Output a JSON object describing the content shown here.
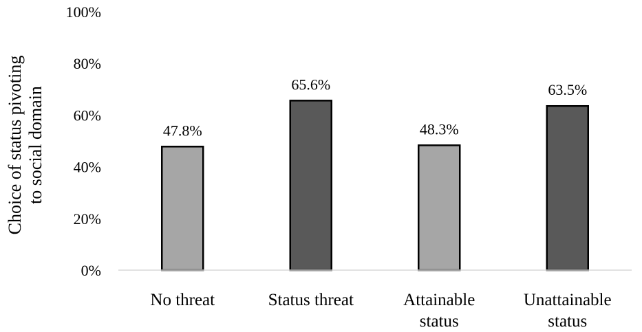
{
  "chart_data": {
    "type": "bar",
    "title": "",
    "xlabel": "",
    "ylabel_lines": [
      "Choice of status pivoting",
      "to social domain"
    ],
    "ylim": [
      0,
      100
    ],
    "y_ticks": [
      0,
      20,
      40,
      60,
      80,
      100
    ],
    "y_tick_labels": [
      "0%",
      "20%",
      "40%",
      "60%",
      "80%",
      "100%"
    ],
    "grid": false,
    "legend": "none",
    "categories": [
      [
        "No threat"
      ],
      [
        "Status threat"
      ],
      [
        "Attainable",
        "status"
      ],
      [
        "Unattainable",
        "status"
      ]
    ],
    "values": [
      47.8,
      65.6,
      48.3,
      63.5
    ],
    "data_labels": [
      "47.8%",
      "65.6%",
      "48.3%",
      "63.5%"
    ],
    "bar_colors": [
      "#a6a6a6",
      "#595959",
      "#a6a6a6",
      "#595959"
    ],
    "bar_outline_color": "#000000",
    "axis_line_color": "#d9d9d9"
  }
}
